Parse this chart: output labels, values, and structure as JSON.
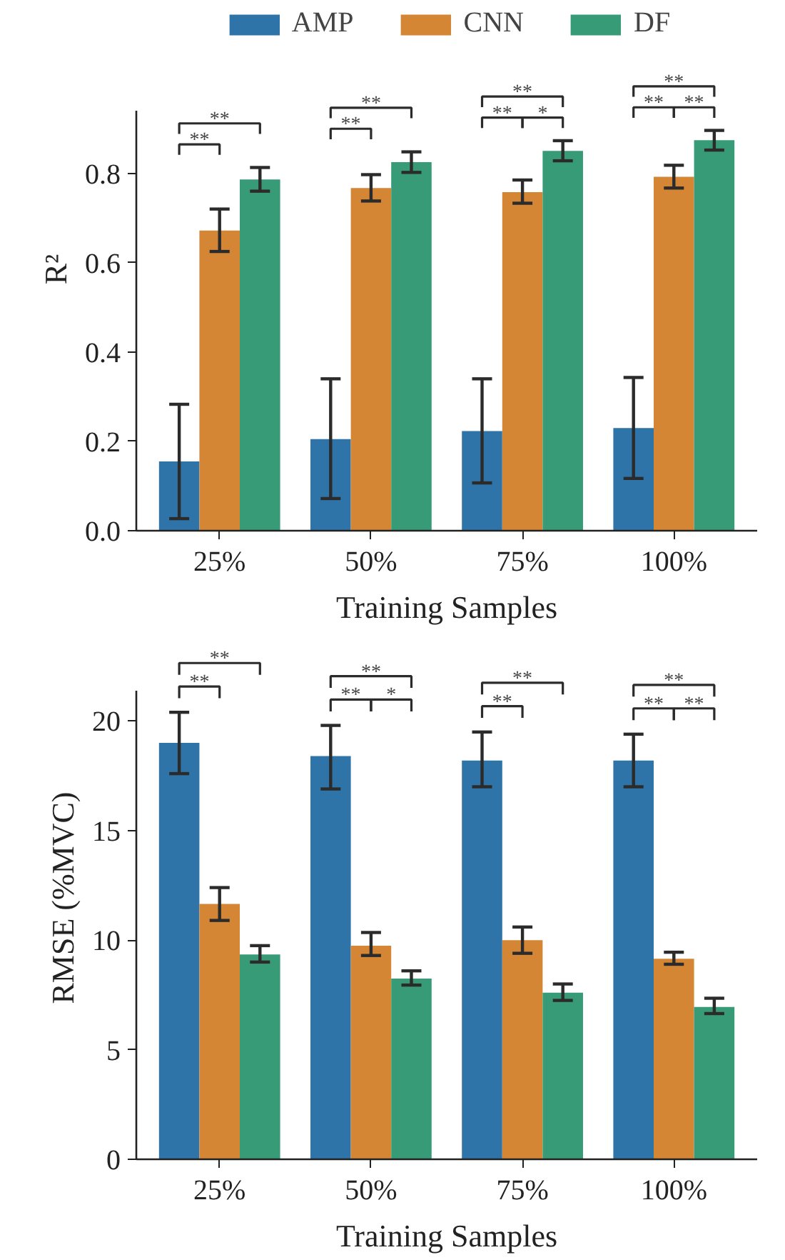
{
  "chart_data": [
    {
      "type": "bar",
      "xlabel": "Training Samples",
      "ylabel": "R²",
      "categories": [
        "25%",
        "50%",
        "75%",
        "100%"
      ],
      "ylim": [
        0,
        0.94
      ],
      "yticks": [
        {
          "value": 0,
          "label": "0.0"
        },
        0.2,
        0.4,
        0.6,
        0.8
      ],
      "grid": false,
      "legend": "top",
      "series": [
        {
          "name": "AMP",
          "color": "#2f74a8",
          "values": [
            0.155,
            0.205,
            0.223,
            0.23
          ],
          "errors": [
            [
              0.027,
              0.283
            ],
            [
              0.072,
              0.34
            ],
            [
              0.107,
              0.34
            ],
            [
              0.117,
              0.343
            ]
          ]
        },
        {
          "name": "CNN",
          "color": "#d48635",
          "values": [
            0.672,
            0.767,
            0.758,
            0.792
          ],
          "errors": [
            [
              0.625,
              0.72
            ],
            [
              0.738,
              0.797
            ],
            [
              0.733,
              0.785
            ],
            [
              0.767,
              0.818
            ]
          ]
        },
        {
          "name": "DF",
          "color": "#379b78",
          "values": [
            0.786,
            0.825,
            0.85,
            0.874
          ],
          "errors": [
            [
              0.76,
              0.813
            ],
            [
              0.802,
              0.848
            ],
            [
              0.828,
              0.873
            ],
            [
              0.852,
              0.896
            ]
          ]
        }
      ],
      "annotations": [
        "**",
        "**",
        "**",
        "**",
        "**",
        "**",
        "*",
        "**",
        "**",
        "**"
      ]
    },
    {
      "type": "bar",
      "xlabel": "Training Samples",
      "ylabel": "RMSE (%MVC)",
      "categories": [
        "25%",
        "50%",
        "75%",
        "100%"
      ],
      "ylim": [
        0,
        21.4
      ],
      "yticks": [
        0,
        5,
        10,
        15,
        20
      ],
      "grid": false,
      "series": [
        {
          "color": "#2f74a8",
          "values": [
            19.0,
            18.4,
            18.2,
            18.2
          ],
          "errors": [
            [
              17.6,
              20.4
            ],
            [
              16.9,
              19.8
            ],
            [
              17.0,
              19.5
            ],
            [
              17.0,
              19.4
            ]
          ]
        },
        {
          "color": "#d48635",
          "values": [
            11.65,
            9.75,
            10.0,
            9.15
          ],
          "errors": [
            [
              10.9,
              12.4
            ],
            [
              9.3,
              10.35
            ],
            [
              9.4,
              10.6
            ],
            [
              8.9,
              9.45
            ]
          ]
        },
        {
          "color": "#379b78",
          "values": [
            9.35,
            8.25,
            7.6,
            6.95
          ],
          "errors": [
            [
              9.0,
              9.75
            ],
            [
              7.95,
              8.6
            ],
            [
              7.25,
              8.0
            ],
            [
              6.65,
              7.35
            ]
          ]
        }
      ],
      "annotations": [
        "**",
        "**",
        "**",
        "**",
        "*",
        "**",
        "**",
        "**",
        "**",
        "**"
      ]
    }
  ]
}
